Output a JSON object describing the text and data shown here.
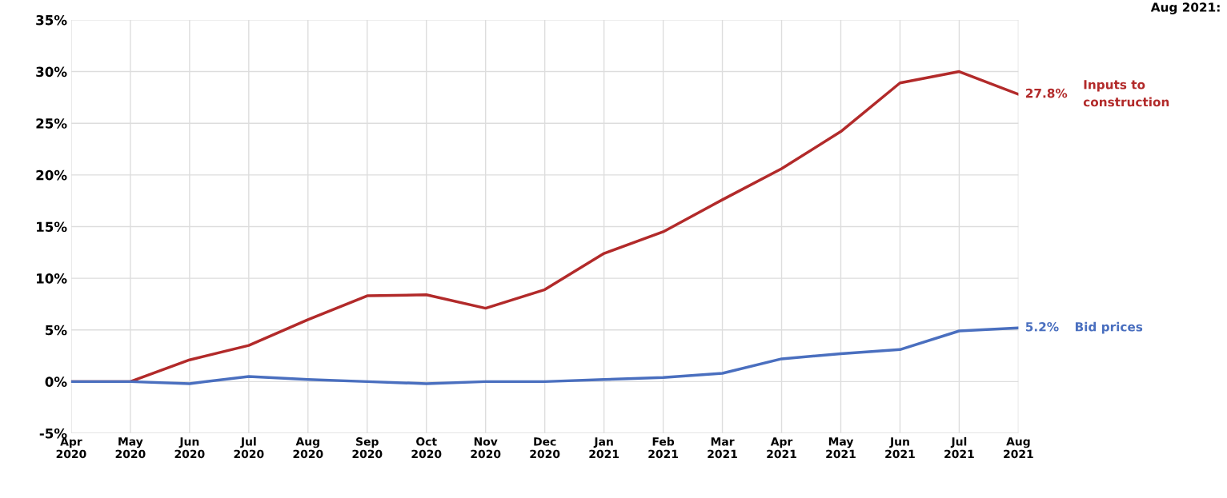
{
  "chart_data": {
    "type": "line",
    "categories": [
      "Apr\n2020",
      "May\n2020",
      "Jun\n2020",
      "Jul\n2020",
      "Aug\n2020",
      "Sep\n2020",
      "Oct\n2020",
      "Nov\n2020",
      "Dec\n2020",
      "Jan\n2021",
      "Feb\n2021",
      "Mar\n2021",
      "Apr\n2021",
      "May\n2021",
      "Jun\n2021",
      "Jul\n2021",
      "Aug\n2021"
    ],
    "series": [
      {
        "name": "Inputs to\nconstruction",
        "color": "#b22a2a",
        "values": [
          0,
          0,
          2.1,
          3.5,
          6.0,
          8.3,
          8.4,
          7.1,
          8.9,
          12.4,
          14.5,
          17.6,
          20.6,
          24.2,
          28.9,
          30.0,
          27.8
        ],
        "value_labels": [
          null,
          null,
          null,
          null,
          null,
          null,
          null,
          null,
          null,
          null,
          null,
          null,
          null,
          null,
          null,
          null,
          "27.8%"
        ]
      },
      {
        "name": "Bid prices",
        "color": "#4a6fbf",
        "values": [
          0,
          0,
          -0.2,
          0.5,
          0.2,
          0.0,
          -0.2,
          0.0,
          0.0,
          0.2,
          0.4,
          0.8,
          2.2,
          2.7,
          3.1,
          4.9,
          5.2
        ],
        "value_labels": [
          null,
          null,
          null,
          null,
          null,
          null,
          null,
          null,
          null,
          null,
          null,
          null,
          null,
          null,
          null,
          null,
          "5.2%"
        ]
      }
    ],
    "ylim": [
      -5,
      35
    ],
    "yticks": [
      {
        "value": -5,
        "label": "-5%"
      },
      {
        "value": 0,
        "label": "0%"
      },
      {
        "value": 5,
        "label": "5%"
      },
      {
        "value": 10,
        "label": "10%"
      },
      {
        "value": 15,
        "label": "15%"
      },
      {
        "value": 20,
        "label": "20%"
      },
      {
        "value": 25,
        "label": "25%"
      },
      {
        "value": 30,
        "label": "30%"
      },
      {
        "value": 35,
        "label": "35%"
      }
    ],
    "grid": true,
    "marker": "none",
    "line_style": "solid",
    "annotations": [
      "Aug 2021:"
    ]
  }
}
